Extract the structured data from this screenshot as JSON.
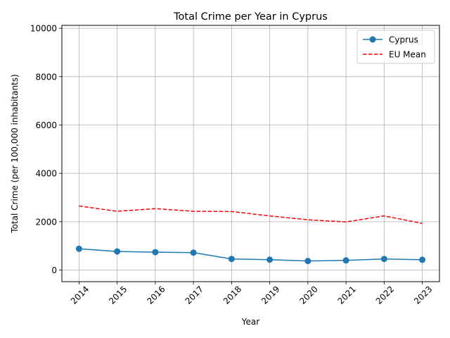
{
  "chart_data": {
    "type": "line",
    "title": "Total Crime per Year in Cyprus",
    "xlabel": "Year",
    "ylabel": "Total Crime (per 100,000 inhabitants)",
    "x": [
      2014,
      2015,
      2016,
      2017,
      2018,
      2019,
      2020,
      2021,
      2022,
      2023
    ],
    "x_tick_labels": [
      "2014",
      "2015",
      "2016",
      "2017",
      "2018",
      "2019",
      "2020",
      "2021",
      "2022",
      "2023"
    ],
    "y_ticks": [
      0,
      2000,
      4000,
      6000,
      8000,
      10000
    ],
    "y_tick_labels": [
      "0",
      "2000",
      "4000",
      "6000",
      "8000",
      "10000"
    ],
    "xlim": [
      2013.55,
      2023.45
    ],
    "ylim": [
      -480,
      10120
    ],
    "grid": true,
    "legend_position": "top-right",
    "series": [
      {
        "name": "Cyprus",
        "values": [
          880,
          770,
          740,
          720,
          460,
          430,
          375,
          400,
          460,
          425
        ],
        "color": "#1f77b4",
        "line_style": "solid",
        "marker": "circle"
      },
      {
        "name": "EU Mean",
        "values": [
          2650,
          2430,
          2540,
          2430,
          2420,
          2240,
          2080,
          1990,
          2240,
          1930
        ],
        "color": "#ff0000",
        "line_style": "dashed",
        "marker": "none"
      }
    ]
  }
}
